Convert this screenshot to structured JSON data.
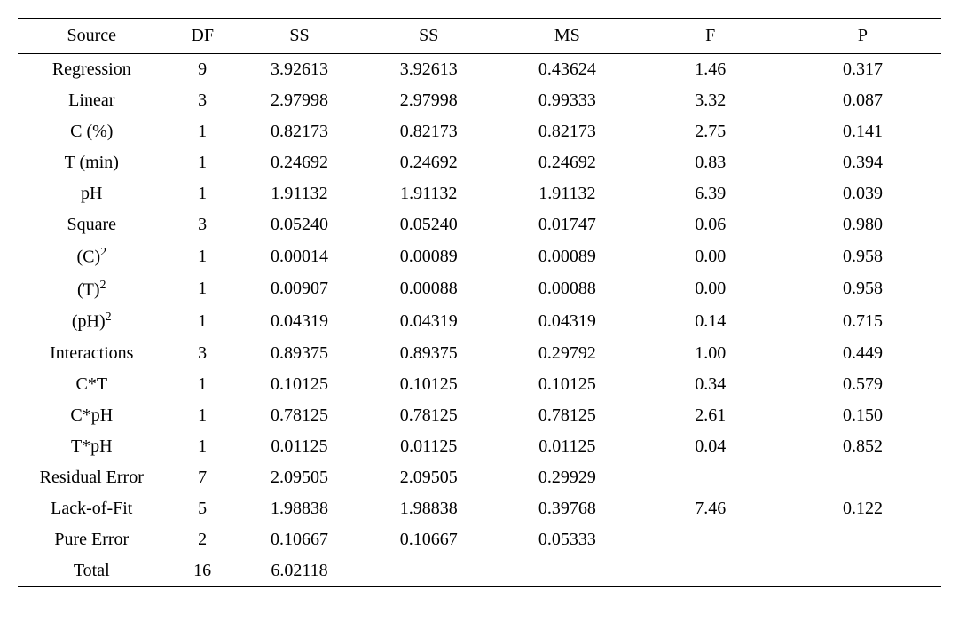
{
  "table": {
    "columns": [
      "Source",
      "DF",
      "SS",
      "SS",
      "MS",
      "F",
      "P"
    ],
    "rows": [
      {
        "source": "Regression",
        "df": "9",
        "ss1": "3.92613",
        "ss2": "3.92613",
        "ms": "0.43624",
        "f": "1.46",
        "p": "0.317"
      },
      {
        "source": "Linear",
        "df": "3",
        "ss1": "2.97998",
        "ss2": "2.97998",
        "ms": "0.99333",
        "f": "3.32",
        "p": "0.087"
      },
      {
        "source": "C (%)",
        "df": "1",
        "ss1": "0.82173",
        "ss2": "0.82173",
        "ms": "0.82173",
        "f": "2.75",
        "p": "0.141"
      },
      {
        "source": "T (min)",
        "df": "1",
        "ss1": "0.24692",
        "ss2": "0.24692",
        "ms": "0.24692",
        "f": "0.83",
        "p": "0.394"
      },
      {
        "source": "pH",
        "df": "1",
        "ss1": "1.91132",
        "ss2": "1.91132",
        "ms": "1.91132",
        "f": "6.39",
        "p": "0.039"
      },
      {
        "source": "Square",
        "df": "3",
        "ss1": "0.05240",
        "ss2": "0.05240",
        "ms": "0.01747",
        "f": "0.06",
        "p": "0.980"
      },
      {
        "source_html": "(C)<sup>2</sup>",
        "df": "1",
        "ss1": "0.00014",
        "ss2": "0.00089",
        "ms": "0.00089",
        "f": "0.00",
        "p": "0.958"
      },
      {
        "source_html": "(T)<sup>2</sup>",
        "df": "1",
        "ss1": "0.00907",
        "ss2": "0.00088",
        "ms": "0.00088",
        "f": "0.00",
        "p": "0.958"
      },
      {
        "source_html": "(pH)<sup>2</sup>",
        "df": "1",
        "ss1": "0.04319",
        "ss2": "0.04319",
        "ms": "0.04319",
        "f": "0.14",
        "p": "0.715"
      },
      {
        "source": "Interactions",
        "df": "3",
        "ss1": "0.89375",
        "ss2": "0.89375",
        "ms": "0.29792",
        "f": "1.00",
        "p": "0.449"
      },
      {
        "source": "C*T",
        "df": "1",
        "ss1": "0.10125",
        "ss2": "0.10125",
        "ms": "0.10125",
        "f": "0.34",
        "p": "0.579"
      },
      {
        "source": "C*pH",
        "df": "1",
        "ss1": "0.78125",
        "ss2": "0.78125",
        "ms": "0.78125",
        "f": "2.61",
        "p": "0.150"
      },
      {
        "source": "T*pH",
        "df": "1",
        "ss1": "0.01125",
        "ss2": "0.01125",
        "ms": "0.01125",
        "f": "0.04",
        "p": "0.852"
      },
      {
        "source": "Residual Error",
        "df": "7",
        "ss1": "2.09505",
        "ss2": "2.09505",
        "ms": "0.29929",
        "f": "",
        "p": ""
      },
      {
        "source": "Lack-of-Fit",
        "df": "5",
        "ss1": "1.98838",
        "ss2": "1.98838",
        "ms": "0.39768",
        "f": "7.46",
        "p": "0.122"
      },
      {
        "source": "Pure Error",
        "df": "2",
        "ss1": "0.10667",
        "ss2": "0.10667",
        "ms": "0.05333",
        "f": "",
        "p": ""
      },
      {
        "source": "Total",
        "df": "16",
        "ss1": "6.02118",
        "ss2": "",
        "ms": "",
        "f": "",
        "p": ""
      }
    ],
    "font_size": 20,
    "border_color": "#000000",
    "background_color": "#ffffff",
    "text_color": "#000000"
  }
}
